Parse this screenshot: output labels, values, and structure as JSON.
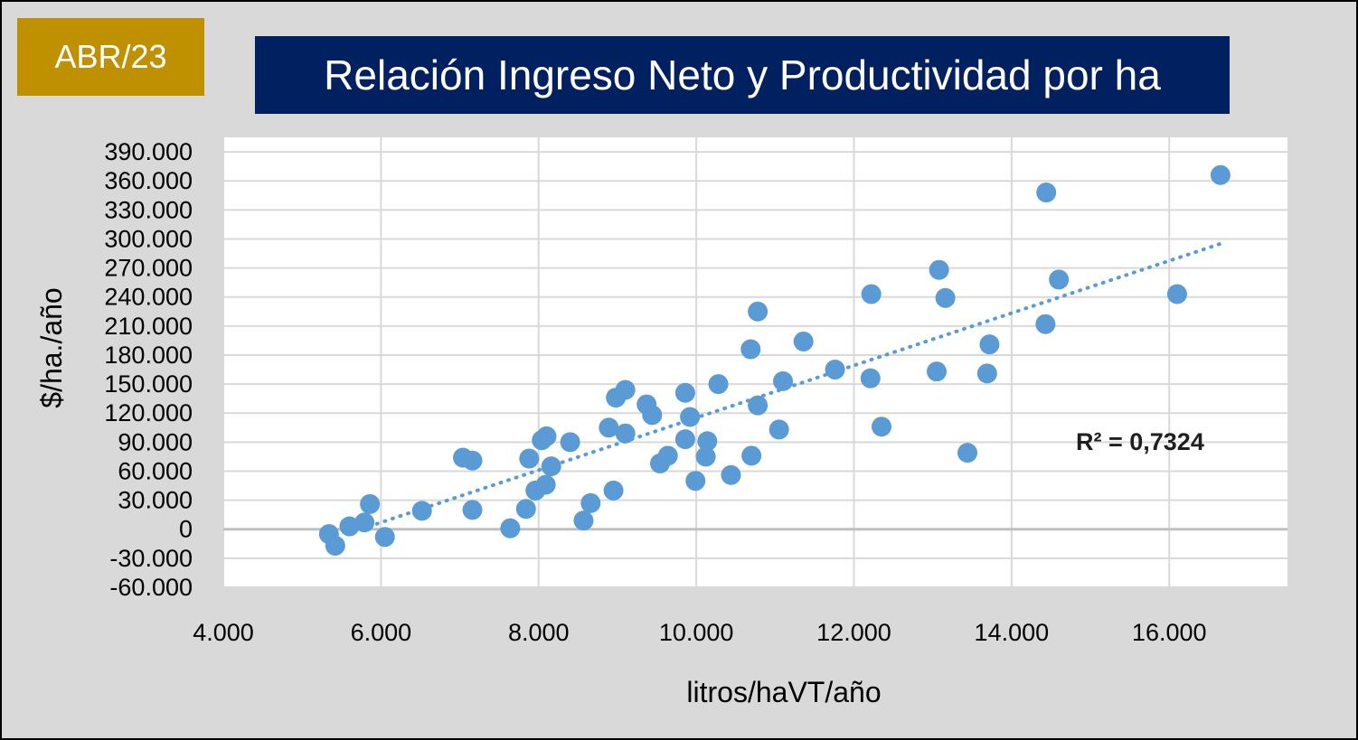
{
  "badge": {
    "label": "ABR/23",
    "color": "#bf9000"
  },
  "header": {
    "title": "Relación Ingreso Neto y Productividad por ha",
    "color": "#002060"
  },
  "chart_data": {
    "type": "scatter",
    "title": "Relación Ingreso Neto y Productividad por ha",
    "xlabel": "litros/haVT/año",
    "ylabel": "$/ha./año",
    "xlim": [
      4000,
      17500
    ],
    "ylim": [
      -60000,
      405000
    ],
    "xticks": [
      4000,
      6000,
      8000,
      10000,
      12000,
      14000,
      16000
    ],
    "xtick_labels": [
      "4.000",
      "6.000",
      "8.000",
      "10.000",
      "12.000",
      "14.000",
      "16.000"
    ],
    "yticks": [
      -60000,
      -30000,
      0,
      30000,
      60000,
      90000,
      120000,
      150000,
      180000,
      210000,
      240000,
      270000,
      300000,
      330000,
      360000,
      390000
    ],
    "ytick_labels": [
      "-60.000",
      "-30.000",
      "0",
      "30.000",
      "60.000",
      "90.000",
      "120.000",
      "150.000",
      "180.000",
      "210.000",
      "240.000",
      "270.000",
      "300.000",
      "330.000",
      "360.000",
      "390.000"
    ],
    "grid": true,
    "point_color": "#5b9bd5",
    "trendline": {
      "type": "linear",
      "x": [
        5850,
        16650
      ],
      "y": [
        3000,
        295000
      ],
      "style": "dotted",
      "color": "#5b9bd5"
    },
    "r_squared_label": "R² = 0,7324",
    "series": [
      {
        "points": [
          [
            5340,
            -5000
          ],
          [
            5420,
            -17000
          ],
          [
            5600,
            3000
          ],
          [
            5790,
            7000
          ],
          [
            5860,
            26000
          ],
          [
            6050,
            -8000
          ],
          [
            6520,
            19000
          ],
          [
            7040,
            74000
          ],
          [
            7160,
            71000
          ],
          [
            7160,
            20000
          ],
          [
            7640,
            1000
          ],
          [
            7840,
            21000
          ],
          [
            7880,
            73000
          ],
          [
            7960,
            40000
          ],
          [
            8040,
            92000
          ],
          [
            8100,
            96000
          ],
          [
            8090,
            46000
          ],
          [
            8160,
            65000
          ],
          [
            8400,
            90000
          ],
          [
            8570,
            9000
          ],
          [
            8660,
            27000
          ],
          [
            8890,
            105000
          ],
          [
            8950,
            40000
          ],
          [
            8980,
            136000
          ],
          [
            9100,
            144000
          ],
          [
            9100,
            99000
          ],
          [
            9370,
            129000
          ],
          [
            9440,
            118000
          ],
          [
            9540,
            68000
          ],
          [
            9640,
            76000
          ],
          [
            9860,
            141000
          ],
          [
            9860,
            93000
          ],
          [
            9920,
            116000
          ],
          [
            9990,
            50000
          ],
          [
            10120,
            75000
          ],
          [
            10140,
            91000
          ],
          [
            10280,
            150000
          ],
          [
            10440,
            56000
          ],
          [
            10690,
            186000
          ],
          [
            10700,
            76000
          ],
          [
            10780,
            128000
          ],
          [
            10780,
            225000
          ],
          [
            11050,
            103000
          ],
          [
            11100,
            153000
          ],
          [
            11360,
            194000
          ],
          [
            11760,
            165000
          ],
          [
            12210,
            156000
          ],
          [
            12220,
            243000
          ],
          [
            12350,
            106000
          ],
          [
            13050,
            163000
          ],
          [
            13080,
            268000
          ],
          [
            13160,
            239000
          ],
          [
            13440,
            79000
          ],
          [
            13690,
            161000
          ],
          [
            13720,
            191000
          ],
          [
            14430,
            212000
          ],
          [
            14440,
            348000
          ],
          [
            14600,
            258000
          ],
          [
            16100,
            243000
          ],
          [
            16650,
            366000
          ]
        ]
      }
    ]
  }
}
